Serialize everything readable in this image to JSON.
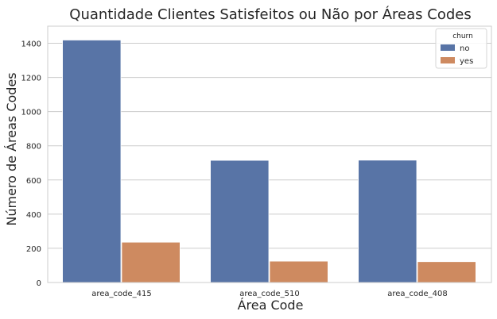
{
  "chart_data": {
    "type": "bar",
    "title": "Quantidade Clientes Satisfeitos ou Não por Áreas Codes",
    "xlabel": "Área Code",
    "ylabel": "Número de Áreas Codes",
    "categories": [
      "area_code_415",
      "area_code_510",
      "area_code_408"
    ],
    "ylim": [
      0,
      1500
    ],
    "yticks": [
      0,
      200,
      400,
      600,
      800,
      1000,
      1200,
      1400
    ],
    "grid": true,
    "legend": {
      "title": "churn",
      "placement": "top-right"
    },
    "series": [
      {
        "name": "no",
        "color": "#5874a6",
        "values": [
          1419,
          715,
          716
        ]
      },
      {
        "name": "yes",
        "color": "#ce8a60",
        "values": [
          236,
          125,
          122
        ]
      }
    ]
  }
}
